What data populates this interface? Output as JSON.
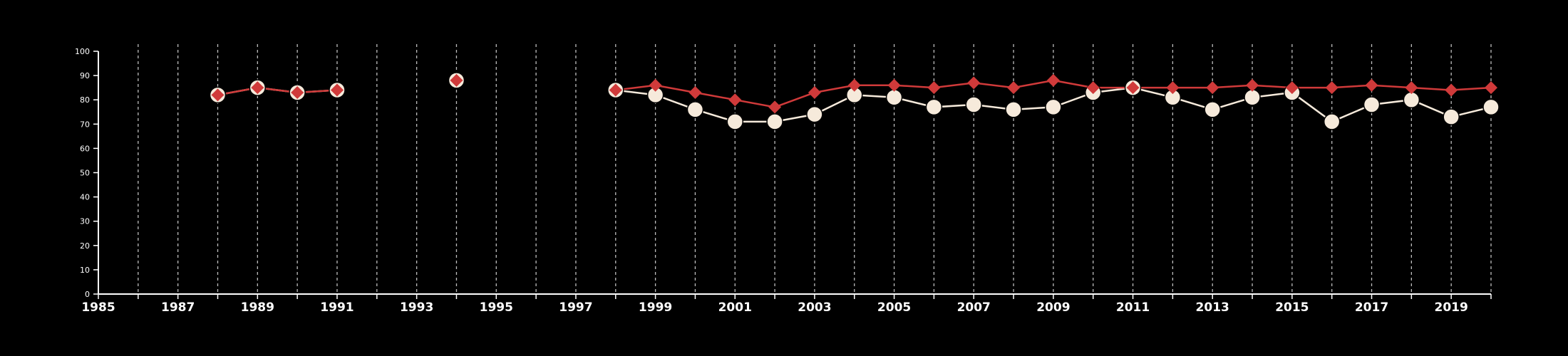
{
  "chart_data": {
    "type": "line",
    "title": "",
    "xlabel": "",
    "ylabel": "",
    "xlim": [
      1985,
      2020
    ],
    "ylim": [
      0,
      100
    ],
    "y_ticks": [
      0,
      10,
      20,
      30,
      40,
      50,
      60,
      70,
      80,
      90,
      100
    ],
    "x_tick_labels": [
      1985,
      1987,
      1989,
      1991,
      1993,
      1995,
      1997,
      1999,
      2001,
      2003,
      2005,
      2007,
      2009,
      2011,
      2013,
      2015,
      2017,
      2019
    ],
    "x_gridlines": [
      1986,
      1987,
      1988,
      1989,
      1990,
      1991,
      1992,
      1993,
      1994,
      1995,
      1996,
      1997,
      1998,
      1999,
      2000,
      2001,
      2002,
      2003,
      2004,
      2005,
      2006,
      2007,
      2008,
      2009,
      2010,
      2011,
      2012,
      2013,
      2014,
      2015,
      2016,
      2017,
      2018,
      2019,
      2020
    ],
    "grid": "vertical dashed",
    "legend": "none",
    "series": [
      {
        "color": "#f6eadb",
        "marker": "circle",
        "points": [
          {
            "x": 1988,
            "y": 82
          },
          {
            "x": 1989,
            "y": 85
          },
          {
            "x": 1990,
            "y": 83
          },
          {
            "x": 1991,
            "y": 84
          },
          {
            "x": 1994,
            "y": 88
          },
          {
            "x": 1998,
            "y": 84
          },
          {
            "x": 1999,
            "y": 82
          },
          {
            "x": 2000,
            "y": 76
          },
          {
            "x": 2001,
            "y": 71
          },
          {
            "x": 2002,
            "y": 71
          },
          {
            "x": 2003,
            "y": 74
          },
          {
            "x": 2004,
            "y": 82
          },
          {
            "x": 2005,
            "y": 81
          },
          {
            "x": 2006,
            "y": 77
          },
          {
            "x": 2007,
            "y": 78
          },
          {
            "x": 2008,
            "y": 76
          },
          {
            "x": 2009,
            "y": 77
          },
          {
            "x": 2010,
            "y": 83
          },
          {
            "x": 2011,
            "y": 85
          },
          {
            "x": 2012,
            "y": 81
          },
          {
            "x": 2013,
            "y": 76
          },
          {
            "x": 2014,
            "y": 81
          },
          {
            "x": 2015,
            "y": 83
          },
          {
            "x": 2016,
            "y": 71
          },
          {
            "x": 2017,
            "y": 78
          },
          {
            "x": 2018,
            "y": 80
          },
          {
            "x": 2019,
            "y": 73
          },
          {
            "x": 2020,
            "y": 77
          }
        ]
      },
      {
        "color": "#d03a3a",
        "marker": "diamond",
        "points": [
          {
            "x": 1988,
            "y": 82
          },
          {
            "x": 1989,
            "y": 85
          },
          {
            "x": 1990,
            "y": 83
          },
          {
            "x": 1991,
            "y": 84
          },
          {
            "x": 1994,
            "y": 88
          },
          {
            "x": 1998,
            "y": 84
          },
          {
            "x": 1999,
            "y": 86
          },
          {
            "x": 2000,
            "y": 83
          },
          {
            "x": 2001,
            "y": 80
          },
          {
            "x": 2002,
            "y": 77
          },
          {
            "x": 2003,
            "y": 83
          },
          {
            "x": 2004,
            "y": 86
          },
          {
            "x": 2005,
            "y": 86
          },
          {
            "x": 2006,
            "y": 85
          },
          {
            "x": 2007,
            "y": 87
          },
          {
            "x": 2008,
            "y": 85
          },
          {
            "x": 2009,
            "y": 88
          },
          {
            "x": 2010,
            "y": 85
          },
          {
            "x": 2011,
            "y": 85
          },
          {
            "x": 2012,
            "y": 85
          },
          {
            "x": 2013,
            "y": 85
          },
          {
            "x": 2014,
            "y": 86
          },
          {
            "x": 2015,
            "y": 85
          },
          {
            "x": 2016,
            "y": 85
          },
          {
            "x": 2017,
            "y": 86
          },
          {
            "x": 2018,
            "y": 85
          },
          {
            "x": 2019,
            "y": 84
          },
          {
            "x": 2020,
            "y": 85
          }
        ]
      }
    ]
  }
}
